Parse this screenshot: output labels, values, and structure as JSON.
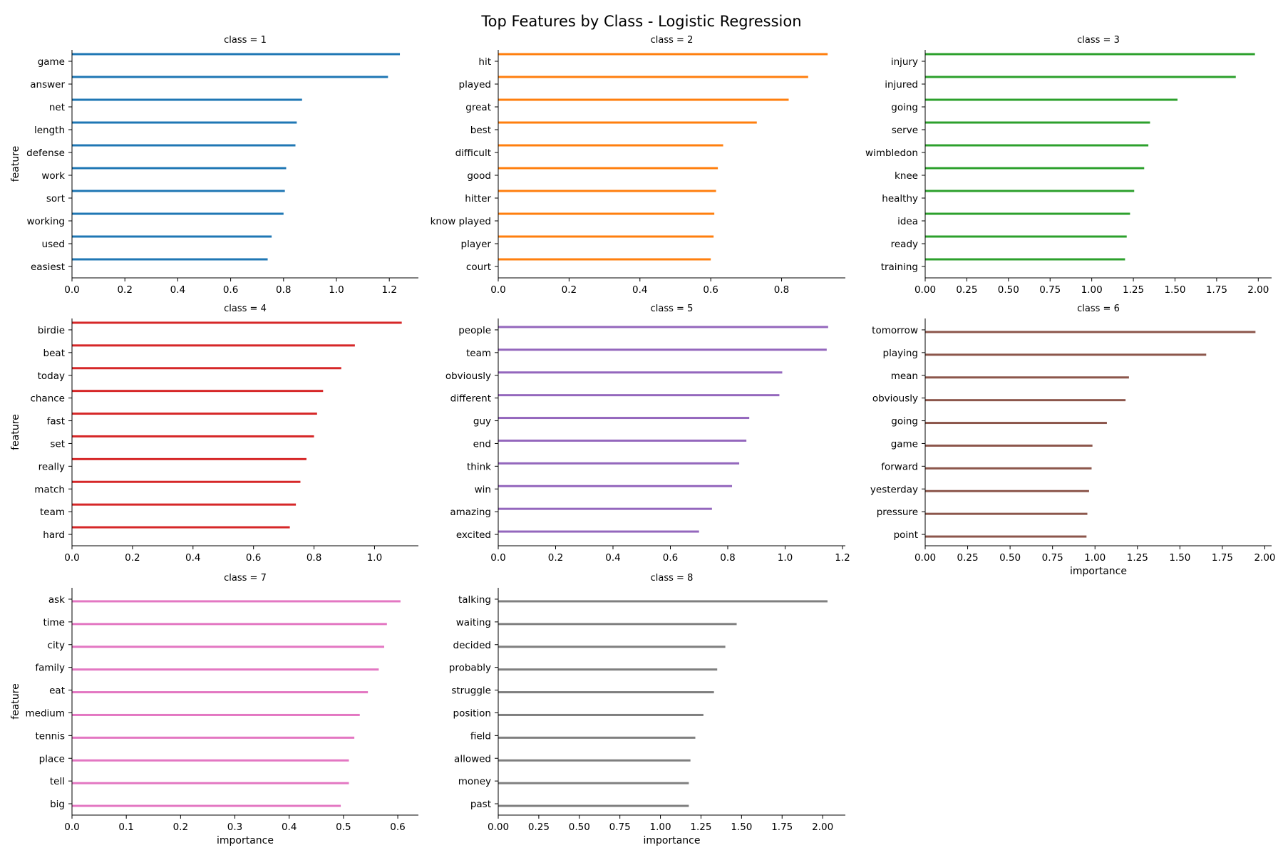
{
  "title": "Top Features by Class - Logistic Regression",
  "chart_data": [
    {
      "type": "bar",
      "orientation": "horizontal",
      "title": "class = 1",
      "ylabel": "feature",
      "xlabel": "",
      "xlim": [
        0,
        1.31
      ],
      "xticks": [
        0,
        0.2,
        0.4,
        0.6,
        0.8,
        1.0,
        1.2
      ],
      "xtick_labels": [
        "0.0",
        "0.2",
        "0.4",
        "0.6",
        "0.8",
        "1.0",
        "1.2"
      ],
      "color": "#1f77b4",
      "bar_position": "top",
      "categories": [
        "game",
        "answer",
        "net",
        "length",
        "defense",
        "work",
        "sort",
        "working",
        "used",
        "easiest"
      ],
      "values": [
        1.24,
        1.195,
        0.87,
        0.85,
        0.845,
        0.81,
        0.805,
        0.8,
        0.755,
        0.74
      ]
    },
    {
      "type": "bar",
      "orientation": "horizontal",
      "title": "class = 2",
      "ylabel": "",
      "xlabel": "",
      "xlim": [
        0,
        0.98
      ],
      "xticks": [
        0,
        0.2,
        0.4,
        0.6,
        0.8
      ],
      "xtick_labels": [
        "0.0",
        "0.2",
        "0.4",
        "0.6",
        "0.8"
      ],
      "color": "#ff7f0e",
      "bar_position": "top",
      "categories": [
        "hit",
        "played",
        "great",
        "best",
        "difficult",
        "good",
        "hitter",
        "know played",
        "player",
        "court"
      ],
      "values": [
        0.93,
        0.875,
        0.82,
        0.73,
        0.635,
        0.62,
        0.615,
        0.61,
        0.608,
        0.6
      ]
    },
    {
      "type": "bar",
      "orientation": "horizontal",
      "title": "class = 3",
      "ylabel": "",
      "xlabel": "",
      "xlim": [
        0,
        2.08
      ],
      "xticks": [
        0,
        0.25,
        0.5,
        0.75,
        1.0,
        1.25,
        1.5,
        1.75,
        2.0
      ],
      "xtick_labels": [
        "0.00",
        "0.25",
        "0.50",
        "0.75",
        "1.00",
        "1.25",
        "1.50",
        "1.75",
        "2.00"
      ],
      "color": "#2ca02c",
      "bar_position": "top",
      "categories": [
        "injury",
        "injured",
        "going",
        "serve",
        "wimbledon",
        "knee",
        "healthy",
        "idea",
        "ready",
        "training"
      ],
      "values": [
        1.98,
        1.865,
        1.515,
        1.35,
        1.34,
        1.315,
        1.255,
        1.23,
        1.21,
        1.2
      ]
    },
    {
      "type": "bar",
      "orientation": "horizontal",
      "title": "class = 4",
      "ylabel": "feature",
      "xlabel": "",
      "xlim": [
        0,
        1.145
      ],
      "xticks": [
        0,
        0.2,
        0.4,
        0.6,
        0.8,
        1.0
      ],
      "xtick_labels": [
        "0.0",
        "0.2",
        "0.4",
        "0.6",
        "0.8",
        "1.0"
      ],
      "color": "#d62728",
      "bar_position": "top",
      "categories": [
        "birdie",
        "beat",
        "today",
        "chance",
        "fast",
        "set",
        "really",
        "match",
        "team",
        "hard"
      ],
      "values": [
        1.09,
        0.935,
        0.89,
        0.83,
        0.81,
        0.8,
        0.775,
        0.755,
        0.74,
        0.72
      ]
    },
    {
      "type": "bar",
      "orientation": "horizontal",
      "title": "class = 5",
      "ylabel": "",
      "xlabel": "",
      "xlim": [
        0,
        1.21
      ],
      "xticks": [
        0,
        0.2,
        0.4,
        0.6,
        0.8,
        1.0,
        1.2
      ],
      "xtick_labels": [
        "0.0",
        "0.2",
        "0.4",
        "0.6",
        "0.8",
        "1.0",
        "1.2"
      ],
      "color": "#9467bd",
      "bar_position": "middle",
      "categories": [
        "people",
        "team",
        "obviously",
        "different",
        "guy",
        "end",
        "think",
        "win",
        "amazing",
        "excited"
      ],
      "values": [
        1.15,
        1.145,
        0.99,
        0.98,
        0.875,
        0.865,
        0.84,
        0.815,
        0.745,
        0.7
      ]
    },
    {
      "type": "bar",
      "orientation": "horizontal",
      "title": "class = 6",
      "ylabel": "",
      "xlabel": "importance",
      "xlim": [
        0,
        2.04
      ],
      "xticks": [
        0,
        0.25,
        0.5,
        0.75,
        1.0,
        1.25,
        1.5,
        1.75,
        2.0
      ],
      "xtick_labels": [
        "0.00",
        "0.25",
        "0.50",
        "0.75",
        "1.00",
        "1.25",
        "1.50",
        "1.75",
        "2.00"
      ],
      "color": "#8c564b",
      "bar_position": "bottom",
      "categories": [
        "tomorrow",
        "playing",
        "mean",
        "obviously",
        "going",
        "game",
        "forward",
        "yesterday",
        "pressure",
        "point"
      ],
      "values": [
        1.945,
        1.655,
        1.2,
        1.18,
        1.07,
        0.985,
        0.98,
        0.965,
        0.955,
        0.95
      ]
    },
    {
      "type": "bar",
      "orientation": "horizontal",
      "title": "class = 7",
      "ylabel": "feature",
      "xlabel": "importance",
      "xlim": [
        0,
        0.638
      ],
      "xticks": [
        0,
        0.1,
        0.2,
        0.3,
        0.4,
        0.5,
        0.6
      ],
      "xtick_labels": [
        "0.0",
        "0.1",
        "0.2",
        "0.3",
        "0.4",
        "0.5",
        "0.6"
      ],
      "color": "#e377c2",
      "bar_position": "bottom",
      "categories": [
        "ask",
        "time",
        "city",
        "family",
        "eat",
        "medium",
        "tennis",
        "place",
        "tell",
        "big"
      ],
      "values": [
        0.605,
        0.58,
        0.575,
        0.565,
        0.545,
        0.53,
        0.52,
        0.51,
        0.51,
        0.495
      ]
    },
    {
      "type": "bar",
      "orientation": "horizontal",
      "title": "class = 8",
      "ylabel": "",
      "xlabel": "importance",
      "xlim": [
        0,
        2.14
      ],
      "xticks": [
        0,
        0.25,
        0.5,
        0.75,
        1.0,
        1.25,
        1.5,
        1.75,
        2.0
      ],
      "xtick_labels": [
        "0.00",
        "0.25",
        "0.50",
        "0.75",
        "1.00",
        "1.25",
        "1.50",
        "1.75",
        "2.00"
      ],
      "color": "#7f7f7f",
      "bar_position": "bottom",
      "categories": [
        "talking",
        "waiting",
        "decided",
        "probably",
        "struggle",
        "position",
        "field",
        "allowed",
        "money",
        "past"
      ],
      "values": [
        2.03,
        1.47,
        1.4,
        1.35,
        1.33,
        1.265,
        1.215,
        1.185,
        1.175,
        1.175
      ]
    }
  ]
}
